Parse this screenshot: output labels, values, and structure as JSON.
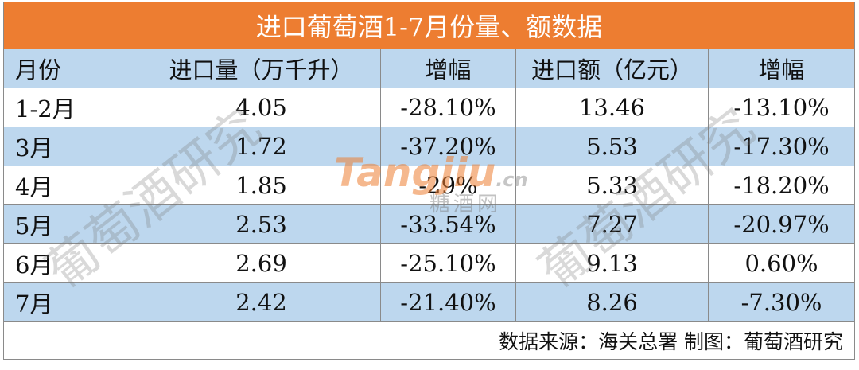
{
  "title": "进口葡萄酒1-7月份量、额数据",
  "table": {
    "header": [
      "月份",
      "进口量（万千升）",
      "增幅",
      "进口额（亿元）",
      "增幅"
    ],
    "rows": [
      [
        "1-2月",
        "4.05",
        "-28.10%",
        "13.46",
        "-13.10%"
      ],
      [
        "3月",
        "1.72",
        "-37.20%",
        "5.53",
        "-17.30%"
      ],
      [
        "4月",
        "1.85",
        "-29%",
        "5.33",
        "-18.20%"
      ],
      [
        "5月",
        "2.53",
        "-33.54%",
        "7.27",
        "-20.97%"
      ],
      [
        "6月",
        "2.69",
        "-25.10%",
        "9.13",
        "0.60%"
      ],
      [
        "7月",
        "2.42",
        "-21.40%",
        "8.26",
        "-7.30%"
      ]
    ]
  },
  "footer": "数据来源：海关总署 制图：葡萄酒研究",
  "watermarks": {
    "left": "葡萄酒研究",
    "right": "葡萄酒研究",
    "logo": "Tangjiu",
    "logo_suffix": ".cn",
    "logo_sub": "糖酒网"
  }
}
